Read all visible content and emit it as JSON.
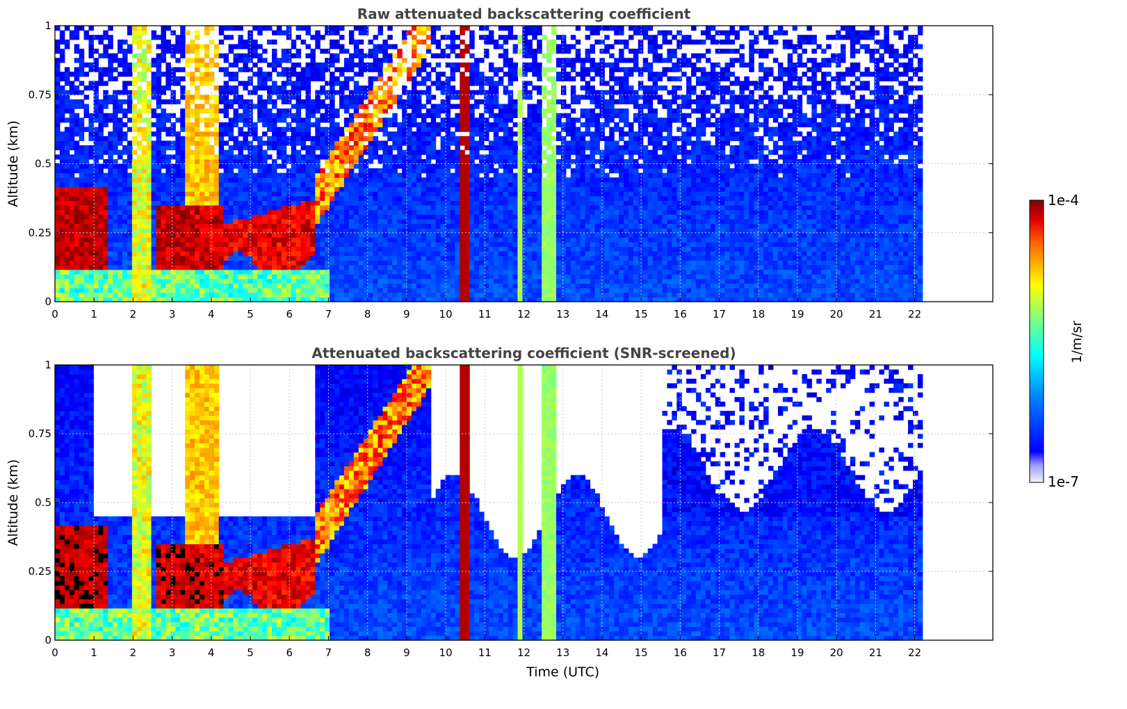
{
  "chart_data": [
    {
      "type": "heatmap",
      "title": "Raw attenuated backscattering coefficient",
      "xlabel": "",
      "ylabel": "Altitude (km)",
      "xlim": [
        0,
        24
      ],
      "ylim": [
        0,
        1
      ],
      "x_ticks": [
        0,
        1,
        2,
        3,
        4,
        5,
        6,
        7,
        8,
        9,
        10,
        11,
        12,
        13,
        14,
        15,
        16,
        17,
        18,
        19,
        20,
        21,
        22
      ],
      "y_ticks": [
        0,
        0.25,
        0.5,
        0.75,
        1
      ],
      "y_tick_labels": [
        "0",
        "0.25",
        "0.5",
        "0.75",
        "1"
      ],
      "grid": true,
      "data_extent_hours": [
        0,
        22.2
      ],
      "screened": false,
      "features": [
        {
          "name": "aerosol-layer-morning",
          "t": [
            0,
            1.3
          ],
          "alt": [
            0.12,
            0.42
          ],
          "level": 0.95
        },
        {
          "name": "aerosol-layer-midmorning",
          "t": [
            2.6,
            4.3
          ],
          "alt": [
            0.12,
            0.35
          ],
          "level": 0.93
        },
        {
          "name": "aerosol-layer-late-morning",
          "t": [
            4.3,
            6.6
          ],
          "alt": [
            0.12,
            0.32
          ],
          "level": 0.9
        },
        {
          "name": "rising-layer",
          "t": [
            6.6,
            9.6
          ],
          "alt": [
            0.35,
            1.0
          ],
          "level": 0.8
        },
        {
          "name": "precip-column-1",
          "t": [
            10.35,
            10.55
          ],
          "alt": [
            0,
            1
          ],
          "level": 0.95
        },
        {
          "name": "precip-column-2",
          "t": [
            11.85,
            11.95
          ],
          "alt": [
            0,
            1
          ],
          "level": 0.55
        },
        {
          "name": "precip-column-3",
          "t": [
            12.5,
            12.8
          ],
          "alt": [
            0,
            1
          ],
          "level": 0.5
        }
      ]
    },
    {
      "type": "heatmap",
      "title": "Attenuated backscattering coefficient (SNR-screened)",
      "xlabel": "Time (UTC)",
      "ylabel": "Altitude (km)",
      "xlim": [
        0,
        24
      ],
      "ylim": [
        0,
        1
      ],
      "x_ticks": [
        0,
        1,
        2,
        3,
        4,
        5,
        6,
        7,
        8,
        9,
        10,
        11,
        12,
        13,
        14,
        15,
        16,
        17,
        18,
        19,
        20,
        21,
        22
      ],
      "y_ticks": [
        0,
        0.25,
        0.5,
        0.75,
        1
      ],
      "y_tick_labels": [
        "0",
        "0.25",
        "0.5",
        "0.75",
        "1"
      ],
      "grid": true,
      "data_extent_hours": [
        0,
        22.2
      ],
      "screened": true,
      "features": [
        {
          "name": "aerosol-layer-morning",
          "t": [
            0,
            1.3
          ],
          "alt": [
            0.12,
            0.38
          ],
          "level": 1.0
        },
        {
          "name": "aerosol-layer-midmorning",
          "t": [
            2.6,
            4.3
          ],
          "alt": [
            0.12,
            0.33
          ],
          "level": 1.0
        },
        {
          "name": "aerosol-layer-late-morning",
          "t": [
            4.3,
            6.6
          ],
          "alt": [
            0.12,
            0.3
          ],
          "level": 1.0
        },
        {
          "name": "rising-layer",
          "t": [
            6.6,
            9.6
          ],
          "alt": [
            0.35,
            1.0
          ],
          "level": 0.85
        }
      ]
    }
  ],
  "colorbar": {
    "label": "1/m/sr",
    "max_label": "1e-4",
    "min_label": "1e-7",
    "range": [
      1e-07,
      0.0001
    ],
    "scale": "log",
    "colormap": "jet",
    "under_color": "#ffffff"
  }
}
